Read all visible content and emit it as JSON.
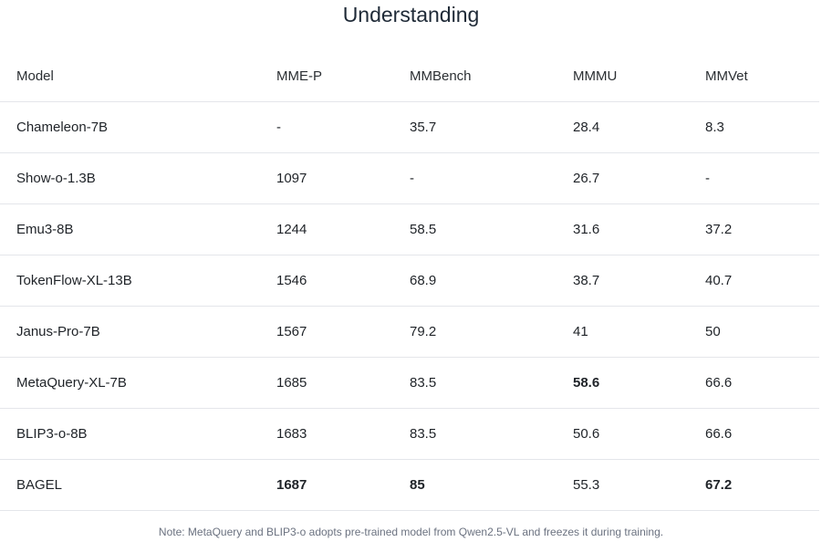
{
  "title": "Understanding",
  "table": {
    "headers": [
      "Model",
      "MME-P",
      "MMBench",
      "MMMU",
      "MMVet"
    ],
    "rows": [
      {
        "model": "Chameleon-7B",
        "mme_p": "-",
        "mmbench": "35.7",
        "mmmu": "28.4",
        "mmvet": "8.3",
        "bold": []
      },
      {
        "model": "Show-o-1.3B",
        "mme_p": "1097",
        "mmbench": "-",
        "mmmu": "26.7",
        "mmvet": "-",
        "bold": []
      },
      {
        "model": "Emu3-8B",
        "mme_p": "1244",
        "mmbench": "58.5",
        "mmmu": "31.6",
        "mmvet": "37.2",
        "bold": []
      },
      {
        "model": "TokenFlow-XL-13B",
        "mme_p": "1546",
        "mmbench": "68.9",
        "mmmu": "38.7",
        "mmvet": "40.7",
        "bold": []
      },
      {
        "model": "Janus-Pro-7B",
        "mme_p": "1567",
        "mmbench": "79.2",
        "mmmu": "41",
        "mmvet": "50",
        "bold": []
      },
      {
        "model": "MetaQuery-XL-7B",
        "mme_p": "1685",
        "mmbench": "83.5",
        "mmmu": "58.6",
        "mmvet": "66.6",
        "bold": [
          "mmmu"
        ]
      },
      {
        "model": "BLIP3-o-8B",
        "mme_p": "1683",
        "mmbench": "83.5",
        "mmmu": "50.6",
        "mmvet": "66.6",
        "bold": []
      },
      {
        "model": "BAGEL",
        "mme_p": "1687",
        "mmbench": "85",
        "mmmu": "55.3",
        "mmvet": "67.2",
        "bold": [
          "mme_p",
          "mmbench",
          "mmvet"
        ]
      }
    ]
  },
  "note": "Note: MetaQuery and BLIP3-o adopts pre-trained model from Qwen2.5-VL and freezes it during training."
}
